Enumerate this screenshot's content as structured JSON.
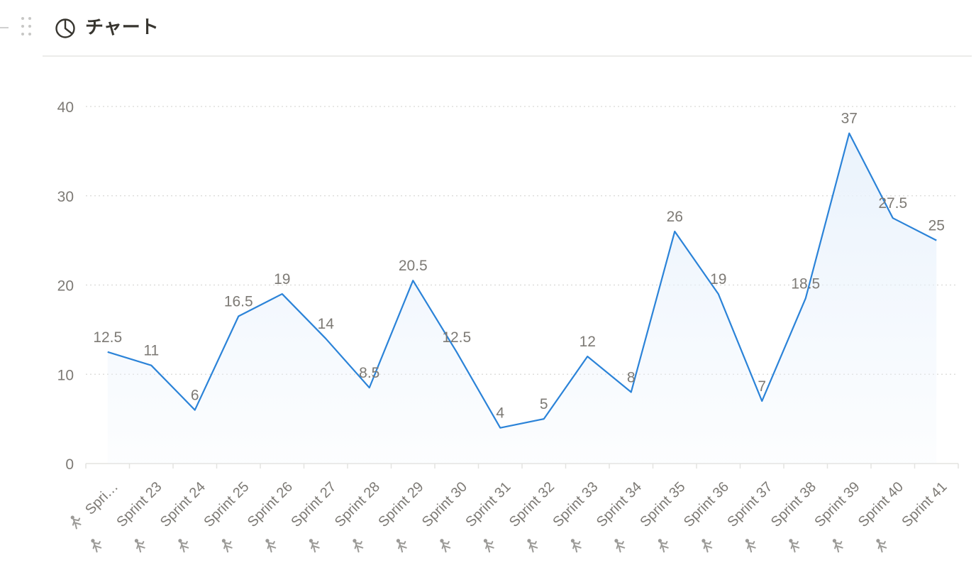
{
  "header": {
    "title": "チャート",
    "icon": "pie-chart-icon",
    "drag_handle_icon": "drag-handle-icon"
  },
  "colors": {
    "line": "#2b83d8",
    "fill": "#e9f2fc",
    "grid": "#d9d9d6",
    "axis": "#e3e3e0",
    "label": "#7d7a75",
    "category_icon": "#9b9a97"
  },
  "chart_data": {
    "type": "area",
    "category_icon": "person-running-icon",
    "categories": [
      "Spri…",
      "Sprint 23",
      "Sprint 24",
      "Sprint 25",
      "Sprint 26",
      "Sprint 27",
      "Sprint 28",
      "Sprint 29",
      "Sprint 30",
      "Sprint 31",
      "Sprint 32",
      "Sprint 33",
      "Sprint 34",
      "Sprint 35",
      "Sprint 36",
      "Sprint 37",
      "Sprint 38",
      "Sprint 39",
      "Sprint 40",
      "Sprint 41"
    ],
    "values": [
      12.5,
      11,
      6,
      16.5,
      19,
      14,
      8.5,
      20.5,
      12.5,
      4,
      5,
      12,
      8,
      26,
      19,
      7,
      18.5,
      37,
      27.5,
      25
    ],
    "data_labels": [
      "12.5",
      "11",
      "6",
      "16.5",
      "19",
      "14",
      "8.5",
      "20.5",
      "12.5",
      "4",
      "5",
      "12",
      "8",
      "26",
      "19",
      "7",
      "18.5",
      "37",
      "27.5",
      "25"
    ],
    "yticks": [
      0,
      10,
      20,
      30,
      40
    ],
    "ytick_labels": [
      "0",
      "10",
      "20",
      "30",
      "40"
    ],
    "ylim": [
      0,
      40
    ],
    "grid": true,
    "legend": "none"
  }
}
